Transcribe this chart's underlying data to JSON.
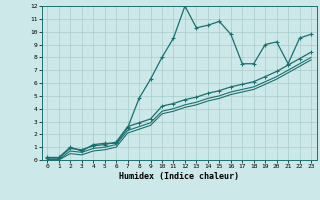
{
  "background_color": "#cce8e8",
  "grid_color": "#aacccc",
  "line_color": "#1a7070",
  "xlabel": "Humidex (Indice chaleur)",
  "xlim": [
    -0.5,
    23.5
  ],
  "ylim": [
    0,
    12
  ],
  "xticks": [
    0,
    1,
    2,
    3,
    4,
    5,
    6,
    7,
    8,
    9,
    10,
    11,
    12,
    13,
    14,
    15,
    16,
    17,
    18,
    19,
    20,
    21,
    22,
    23
  ],
  "yticks": [
    0,
    1,
    2,
    3,
    4,
    5,
    6,
    7,
    8,
    9,
    10,
    11,
    12
  ],
  "series1_x": [
    0,
    1,
    2,
    3,
    4,
    5,
    6,
    7,
    8,
    9,
    10,
    11,
    12,
    13,
    14,
    15,
    16,
    17,
    18,
    19,
    20,
    21,
    22,
    23
  ],
  "series1_y": [
    0.2,
    0.2,
    1.0,
    0.7,
    1.2,
    1.3,
    1.3,
    2.5,
    4.8,
    6.3,
    8.0,
    9.5,
    12.0,
    10.3,
    10.5,
    10.8,
    9.8,
    7.5,
    7.5,
    9.0,
    9.2,
    7.5,
    9.5,
    9.8
  ],
  "series2_x": [
    0,
    1,
    2,
    3,
    4,
    5,
    6,
    7,
    8,
    9,
    10,
    11,
    12,
    13,
    14,
    15,
    16,
    17,
    18,
    19,
    20,
    21,
    22,
    23
  ],
  "series2_y": [
    0.15,
    0.15,
    0.9,
    0.8,
    1.1,
    1.2,
    1.4,
    2.6,
    2.9,
    3.2,
    4.2,
    4.4,
    4.7,
    4.9,
    5.2,
    5.4,
    5.7,
    5.9,
    6.1,
    6.5,
    6.9,
    7.4,
    7.9,
    8.4
  ],
  "series3_x": [
    0,
    1,
    2,
    3,
    4,
    5,
    6,
    7,
    8,
    9,
    10,
    11,
    12,
    13,
    14,
    15,
    16,
    17,
    18,
    19,
    20,
    21,
    22,
    23
  ],
  "series3_y": [
    0.05,
    0.05,
    0.7,
    0.6,
    0.9,
    1.0,
    1.2,
    2.3,
    2.6,
    2.9,
    3.8,
    4.0,
    4.3,
    4.5,
    4.8,
    5.0,
    5.3,
    5.5,
    5.7,
    6.1,
    6.5,
    7.0,
    7.5,
    8.0
  ],
  "series4_x": [
    0,
    1,
    2,
    3,
    4,
    5,
    6,
    7,
    8,
    9,
    10,
    11,
    12,
    13,
    14,
    15,
    16,
    17,
    18,
    19,
    20,
    21,
    22,
    23
  ],
  "series4_y": [
    0.0,
    0.0,
    0.5,
    0.4,
    0.7,
    0.8,
    1.0,
    2.1,
    2.4,
    2.7,
    3.6,
    3.8,
    4.1,
    4.3,
    4.6,
    4.8,
    5.1,
    5.3,
    5.5,
    5.9,
    6.3,
    6.8,
    7.3,
    7.8
  ]
}
